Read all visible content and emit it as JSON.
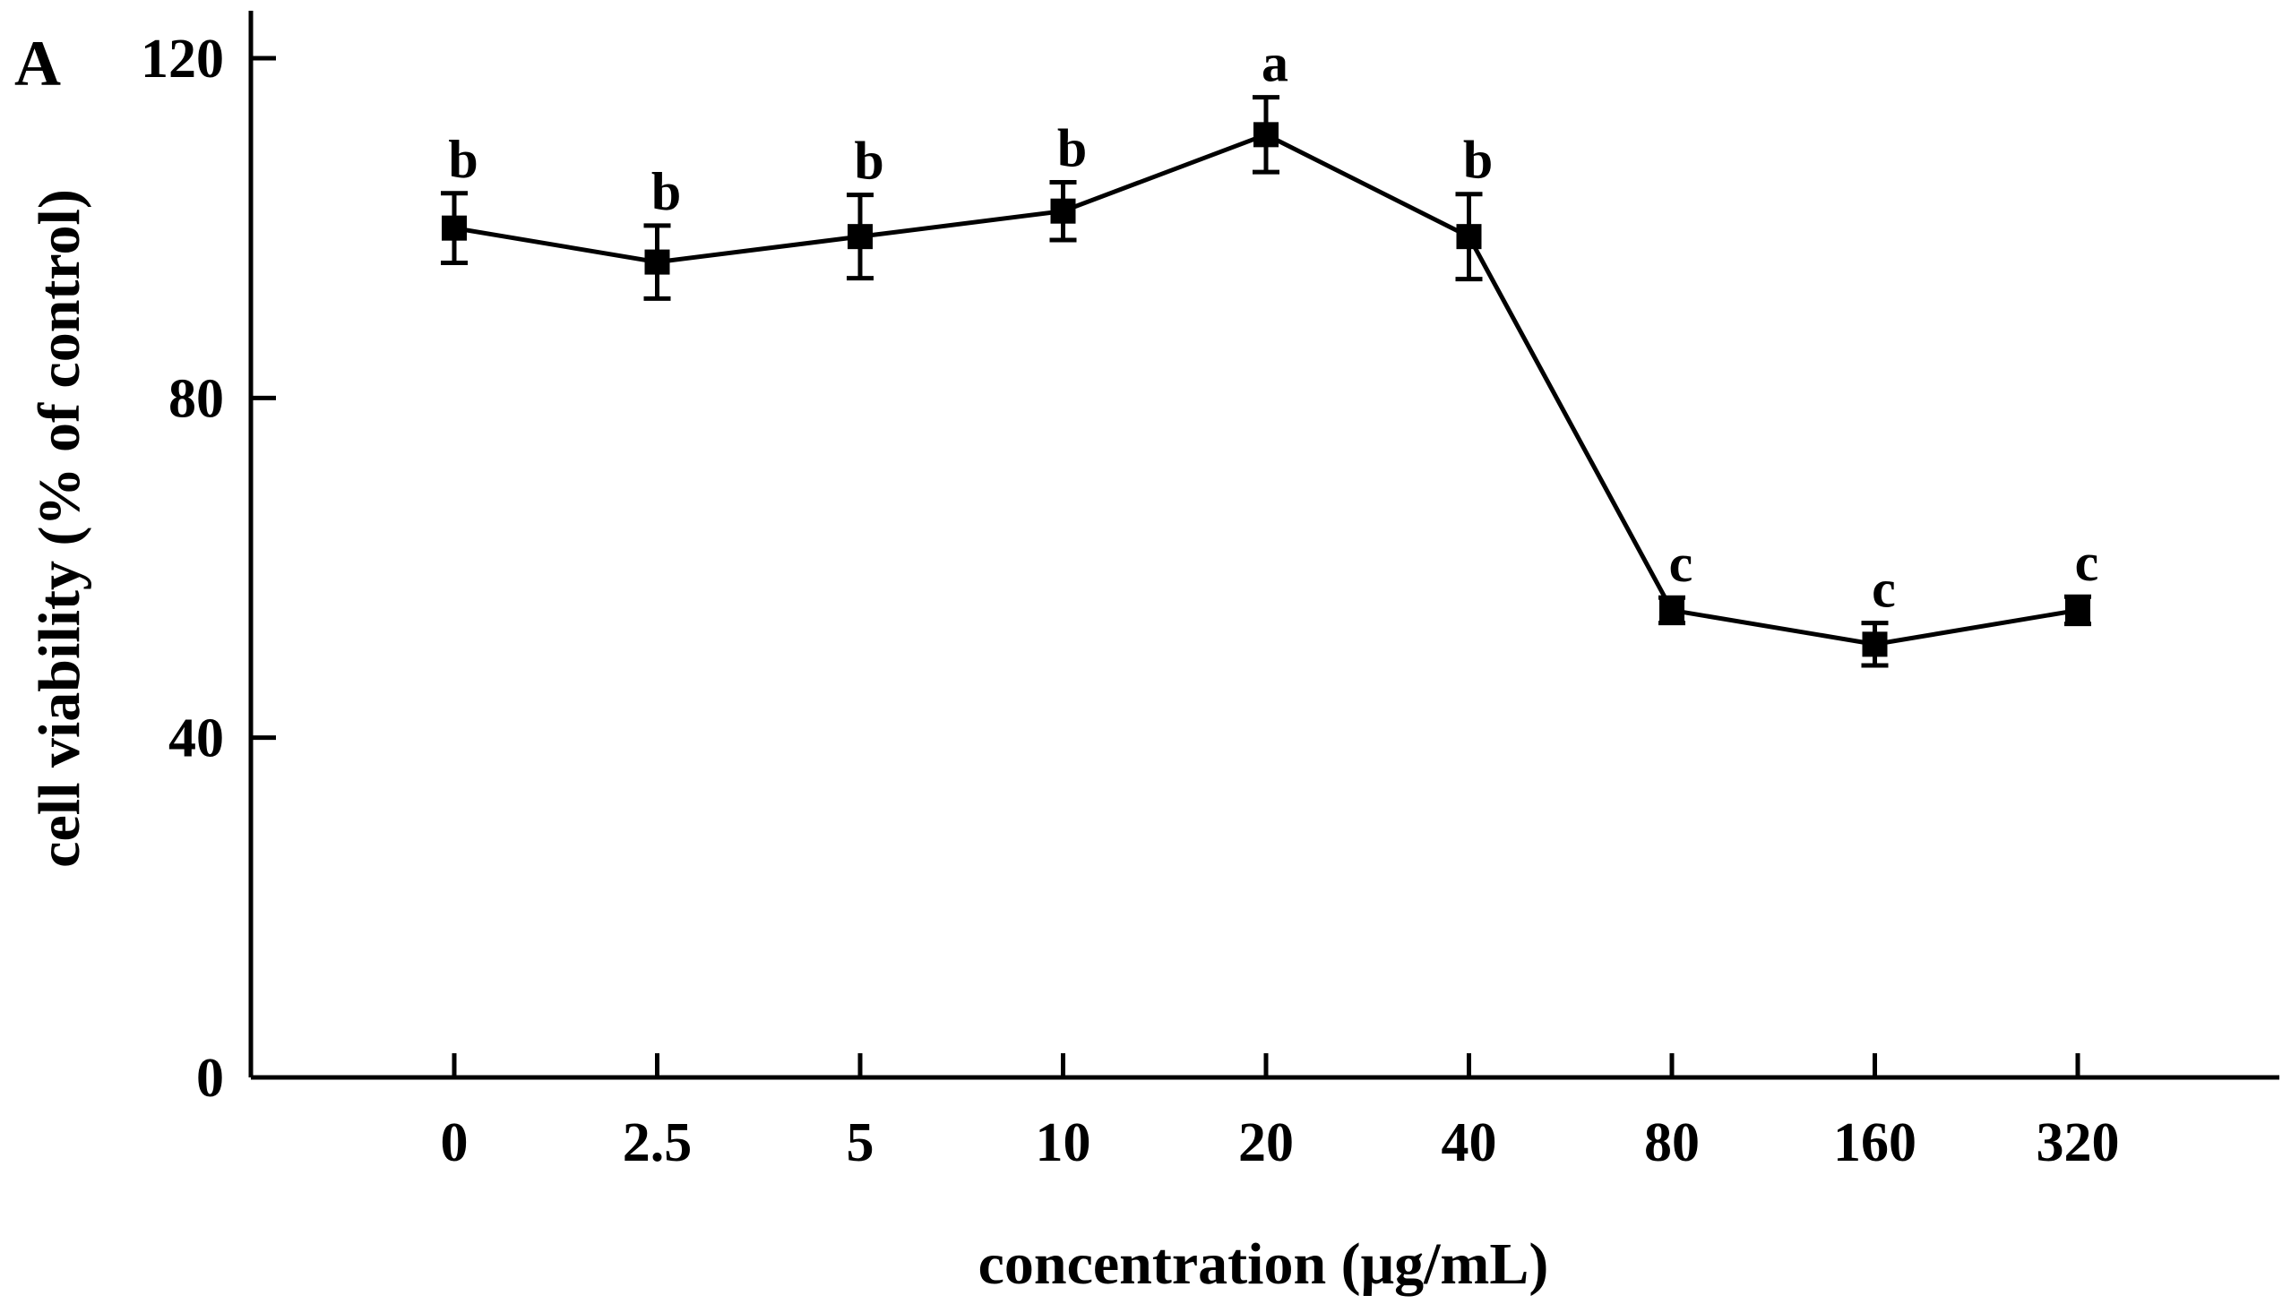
{
  "panel_label": "A",
  "chart_data": {
    "type": "line",
    "title": "",
    "xlabel": "concentration (μg/mL)",
    "ylabel": "cell viability (% of control)",
    "categories": [
      "0",
      "2.5",
      "5",
      "10",
      "20",
      "40",
      "80",
      "160",
      "320"
    ],
    "values": [
      100,
      96,
      99,
      102,
      111,
      99,
      55,
      51,
      55
    ],
    "errors": [
      4.1,
      4.3,
      4.9,
      3.4,
      4.4,
      5.0,
      1.5,
      2.5,
      1.6
    ],
    "significance": [
      "b",
      "b",
      "b",
      "b",
      "a",
      "b",
      "c",
      "c",
      "c"
    ],
    "ylim": [
      0,
      120
    ],
    "yticks": [
      "0",
      "40",
      "80",
      "120"
    ],
    "grid": false,
    "marker": "square",
    "color": "#000000"
  }
}
